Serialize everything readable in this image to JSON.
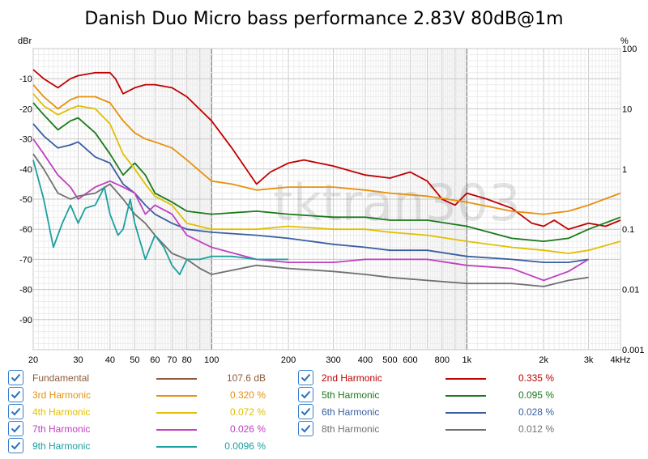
{
  "chart_data": {
    "type": "line",
    "title": "Danish Duo Micro bass performance 2.83V 80dB@1m",
    "y_unit_left": "dBr",
    "y_unit_right": "%",
    "x_unit": "kHz",
    "x_scale": "log",
    "xlim": [
      20,
      4000
    ],
    "ylim_left": [
      -100,
      0
    ],
    "ylim_right": [
      0.001,
      100
    ],
    "grid": true,
    "x_ticks": [
      "20",
      "30",
      "40",
      "50",
      "60",
      "70",
      "80",
      "100",
      "200",
      "300",
      "400",
      "500",
      "600",
      "800",
      "1k",
      "2k",
      "3k",
      "4kHz"
    ],
    "y_ticks_left": [
      "-10",
      "-20",
      "-30",
      "-40",
      "-50",
      "-60",
      "-70",
      "-80",
      "-90"
    ],
    "y_ticks_right": [
      "100",
      "10",
      "1",
      "0.1",
      "0.01",
      "0.001"
    ],
    "watermark": "tktran303",
    "series": [
      {
        "name": "Fundamental",
        "color": "#8b5a3c",
        "legend_value": "107.6 dB",
        "x": [],
        "y": []
      },
      {
        "name": "2nd Harmonic",
        "color": "#c00000",
        "legend_value": "0.335 %",
        "x": [
          20,
          22,
          25,
          28,
          30,
          35,
          40,
          42,
          45,
          50,
          55,
          60,
          70,
          80,
          100,
          120,
          150,
          170,
          200,
          230,
          300,
          400,
          500,
          600,
          700,
          800,
          900,
          1000,
          1200,
          1500,
          1800,
          2000,
          2200,
          2500,
          3000,
          3500,
          4000
        ],
        "y": [
          -7,
          -10,
          -13,
          -10,
          -9,
          -8,
          -8,
          -10,
          -15,
          -13,
          -12,
          -12,
          -13,
          -16,
          -24,
          -33,
          -45,
          -41,
          -38,
          -37,
          -39,
          -42,
          -43,
          -41,
          -44,
          -50,
          -52,
          -48,
          -50,
          -53,
          -58,
          -59,
          -57,
          -60,
          -58,
          -59,
          -57
        ]
      },
      {
        "name": "3rd Harmonic",
        "color": "#e8900c",
        "legend_value": "0.320 %",
        "x": [
          20,
          22,
          25,
          28,
          30,
          35,
          40,
          45,
          50,
          55,
          60,
          70,
          80,
          100,
          120,
          150,
          200,
          300,
          400,
          500,
          700,
          1000,
          1500,
          2000,
          2500,
          3000,
          4000
        ],
        "y": [
          -12,
          -16,
          -20,
          -17,
          -16,
          -16,
          -18,
          -24,
          -28,
          -30,
          -31,
          -33,
          -37,
          -44,
          -45,
          -47,
          -46,
          -46,
          -47,
          -48,
          -49,
          -51,
          -54,
          -55,
          -54,
          -52,
          -48
        ]
      },
      {
        "name": "5th Harmonic",
        "color": "#1a7a1a",
        "legend_value": "0.095 %",
        "x": [
          20,
          22,
          25,
          28,
          30,
          35,
          40,
          45,
          50,
          55,
          60,
          70,
          80,
          100,
          150,
          200,
          300,
          400,
          500,
          700,
          1000,
          1500,
          2000,
          2500,
          3000,
          4000
        ],
        "y": [
          -18,
          -22,
          -27,
          -24,
          -23,
          -28,
          -35,
          -42,
          -38,
          -42,
          -48,
          -51,
          -54,
          -55,
          -54,
          -55,
          -56,
          -56,
          -57,
          -57,
          -59,
          -63,
          -64,
          -63,
          -60,
          -56
        ]
      },
      {
        "name": "4th Harmonic",
        "color": "#e0c000",
        "legend_value": "0.072 %",
        "x": [
          20,
          22,
          25,
          28,
          30,
          35,
          40,
          45,
          50,
          55,
          60,
          70,
          80,
          100,
          150,
          200,
          300,
          400,
          500,
          700,
          1000,
          1500,
          2000,
          2500,
          3000,
          4000
        ],
        "y": [
          -15,
          -19,
          -22,
          -20,
          -19,
          -20,
          -25,
          -35,
          -40,
          -45,
          -49,
          -52,
          -58,
          -60,
          -60,
          -59,
          -60,
          -60,
          -61,
          -62,
          -64,
          -66,
          -67,
          -68,
          -67,
          -64
        ]
      },
      {
        "name": "6th Harmonic",
        "color": "#3a5fa0",
        "legend_value": "0.028 %",
        "x": [
          20,
          22,
          25,
          28,
          30,
          35,
          40,
          45,
          50,
          55,
          60,
          70,
          80,
          100,
          150,
          200,
          300,
          400,
          500,
          700,
          1000,
          1500,
          2000,
          2500,
          3000
        ],
        "y": [
          -25,
          -29,
          -33,
          -32,
          -31,
          -36,
          -38,
          -45,
          -48,
          -52,
          -55,
          -58,
          -60,
          -61,
          -62,
          -63,
          -65,
          -66,
          -67,
          -67,
          -69,
          -70,
          -71,
          -71,
          -70
        ]
      },
      {
        "name": "7th Harmonic",
        "color": "#c040c0",
        "legend_value": "0.026 %",
        "x": [
          20,
          22,
          25,
          28,
          30,
          35,
          40,
          45,
          50,
          55,
          60,
          70,
          80,
          100,
          150,
          200,
          300,
          400,
          500,
          700,
          1000,
          1500,
          2000,
          2500,
          3000
        ],
        "y": [
          -30,
          -35,
          -42,
          -46,
          -50,
          -46,
          -44,
          -46,
          -48,
          -55,
          -52,
          -55,
          -62,
          -66,
          -70,
          -71,
          -71,
          -70,
          -70,
          -70,
          -72,
          -73,
          -77,
          -74,
          -70
        ]
      },
      {
        "name": "8th Harmonic",
        "color": "#707070",
        "legend_value": "0.012 %",
        "x": [
          20,
          22,
          25,
          28,
          30,
          35,
          40,
          45,
          50,
          55,
          60,
          70,
          80,
          90,
          100,
          150,
          200,
          300,
          400,
          500,
          700,
          1000,
          1500,
          2000,
          2500,
          3000
        ],
        "y": [
          -35,
          -40,
          -48,
          -50,
          -49,
          -48,
          -45,
          -50,
          -55,
          -58,
          -62,
          -68,
          -70,
          -73,
          -75,
          -72,
          -73,
          -74,
          -75,
          -76,
          -77,
          -78,
          -78,
          -79,
          -77,
          -76
        ]
      },
      {
        "name": "9th Harmonic",
        "color": "#1aa0a0",
        "legend_value": "0.0096 %",
        "x": [
          20,
          22,
          24,
          26,
          28,
          30,
          32,
          35,
          38,
          40,
          43,
          45,
          48,
          50,
          55,
          60,
          65,
          70,
          75,
          80,
          90,
          100,
          120,
          150,
          200
        ],
        "y": [
          -37,
          -50,
          -66,
          -58,
          -52,
          -58,
          -53,
          -52,
          -46,
          -55,
          -62,
          -60,
          -50,
          -58,
          -70,
          -62,
          -66,
          -72,
          -75,
          -70,
          -70,
          -69,
          -69,
          -70,
          -70
        ]
      }
    ],
    "legend": {
      "checked": true
    }
  }
}
